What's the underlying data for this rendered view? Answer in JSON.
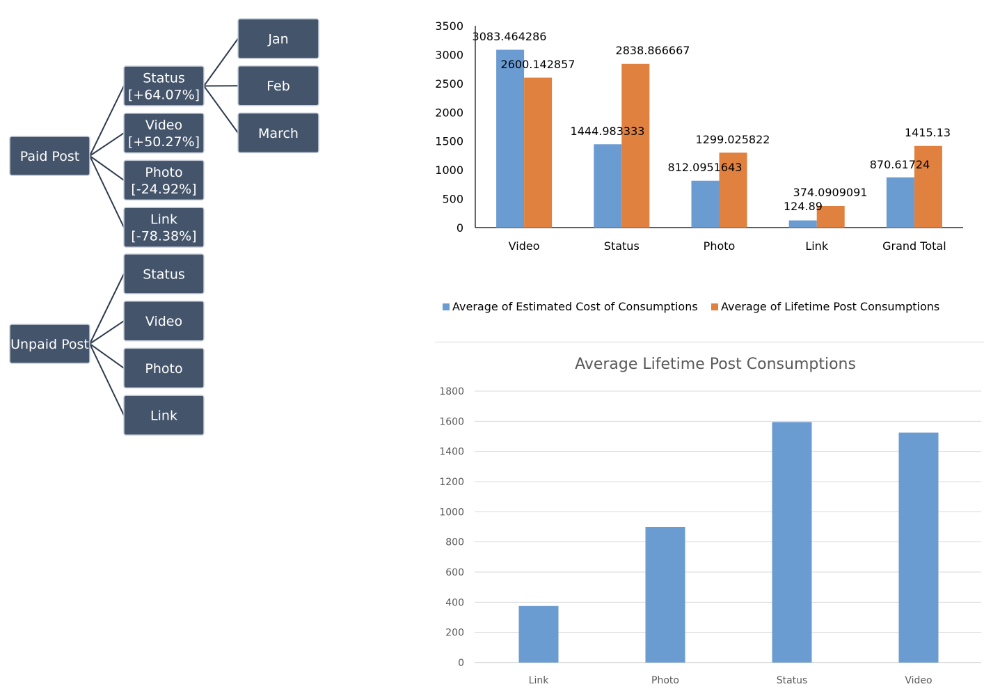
{
  "tree": {
    "node_fill": "#44546a",
    "node_stroke": "#c9d1dc",
    "text_color": "#ffffff",
    "line_color": "#2e3b4e",
    "roots": [
      {
        "label": "Paid Post",
        "children": [
          {
            "lines": [
              "Status",
              "[+64.07%]"
            ],
            "children": [
              [
                "Jan"
              ],
              [
                "Feb"
              ],
              [
                "March"
              ]
            ]
          },
          {
            "lines": [
              "Video",
              "[+50.27%]"
            ]
          },
          {
            "lines": [
              "Photo",
              "[-24.92%]"
            ]
          },
          {
            "lines": [
              "Link",
              "[-78.38%]"
            ]
          }
        ]
      },
      {
        "label": "Unpaid Post",
        "children": [
          {
            "lines": [
              "Status"
            ]
          },
          {
            "lines": [
              "Video"
            ]
          },
          {
            "lines": [
              "Photo"
            ]
          },
          {
            "lines": [
              "Link"
            ]
          }
        ]
      }
    ]
  },
  "chart_data": [
    {
      "type": "bar",
      "title": "",
      "categories": [
        "Video",
        "Status",
        "Photo",
        "Link",
        "Grand Total"
      ],
      "series": [
        {
          "name": "Average of Estimated Cost of Consumptions",
          "color": "#6a9bd1",
          "values": [
            3083.464286,
            1444.983333,
            812.0951643,
            124.89,
            870.61724
          ],
          "labels": [
            "3083.464286",
            "1444.983333",
            "812.0951643",
            "124.89",
            "870.61724"
          ]
        },
        {
          "name": "Average of Lifetime Post Consumptions",
          "color": "#e0813f",
          "values": [
            2600.142857,
            2838.866667,
            1299.025822,
            374.0909091,
            1415.13
          ],
          "labels": [
            "2600.142857",
            "2838.866667",
            "1299.025822",
            "374.0909091",
            "1415.13"
          ]
        }
      ],
      "ylim": [
        0,
        3500
      ],
      "yticks": [
        0,
        500,
        1000,
        1500,
        2000,
        2500,
        3000,
        3500
      ],
      "grid": false,
      "legend": "bottom"
    },
    {
      "type": "bar",
      "title": "Average Lifetime Post Consumptions",
      "categories": [
        "Link",
        "Photo",
        "Status",
        "Video"
      ],
      "series": [
        {
          "color": "#6a9bd1",
          "values": [
            375,
            900,
            1595,
            1525
          ]
        }
      ],
      "ylim": [
        0,
        1800
      ],
      "yticks": [
        0,
        200,
        400,
        600,
        800,
        1000,
        1200,
        1400,
        1600,
        1800
      ],
      "grid": true,
      "legend": "none"
    }
  ]
}
